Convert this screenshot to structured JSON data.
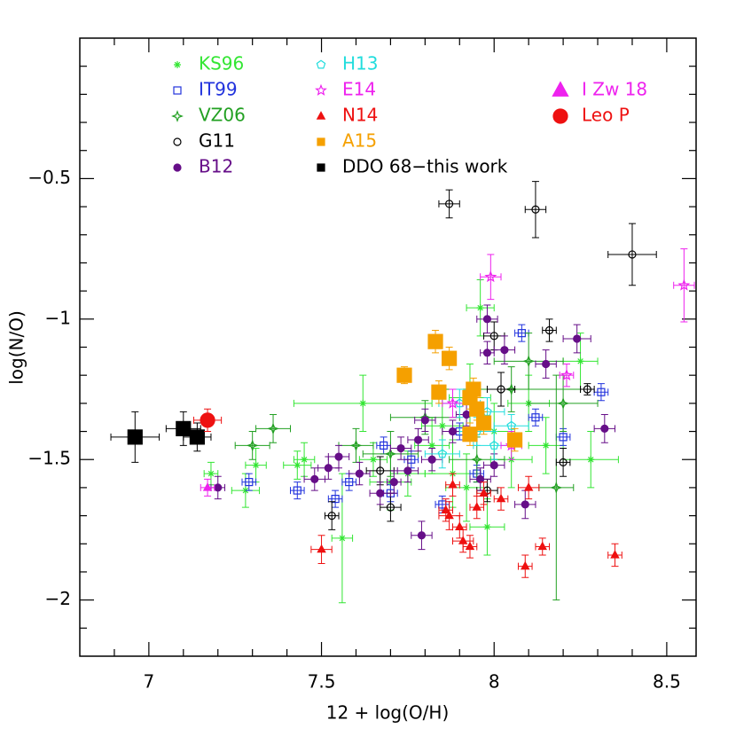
{
  "chart_data": {
    "type": "scatter",
    "xlabel": "12 + log(O/H)",
    "ylabel": "log(N/O)",
    "xlim": [
      6.8,
      8.585
    ],
    "ylim": [
      -2.2,
      0
    ],
    "xticks": [
      7,
      7.5,
      8,
      8.5
    ],
    "yticks": [
      {
        "value": -2,
        "label": "−2"
      },
      {
        "value": -1.5,
        "label": "−1.5"
      },
      {
        "value": -1,
        "label": "−1"
      },
      {
        "value": -0.5,
        "label": "−0.5"
      }
    ],
    "xminorticks": [
      6.9,
      7.1,
      7.2,
      7.3,
      7.4,
      7.6,
      7.7,
      7.8,
      7.9,
      8.1,
      8.2,
      8.3,
      8.4
    ],
    "yminorticks": [
      -2.1,
      -1.9,
      -1.8,
      -1.7,
      -1.6,
      -1.4,
      -1.3,
      -1.2,
      -1.1,
      -0.9,
      -0.8,
      -0.7,
      -0.6,
      -0.4,
      -0.3,
      -0.2,
      -0.1
    ],
    "series": [
      {
        "name": "KS96",
        "color": "#33e633",
        "marker": "asterisk",
        "x": [
          7.18,
          7.28,
          7.31,
          7.43,
          7.56,
          7.45,
          7.65,
          7.75,
          7.82,
          7.88,
          7.93,
          7.96,
          8.0,
          8.05,
          8.1,
          8.15,
          8.25,
          8.28,
          7.98,
          7.92,
          7.7,
          7.62,
          7.85
        ],
        "values": [
          -1.55,
          -1.61,
          -1.52,
          -1.52,
          -1.78,
          -1.5,
          -1.5,
          -1.55,
          -1.45,
          -1.55,
          -1.28,
          -0.96,
          -1.4,
          -1.5,
          -1.3,
          -1.45,
          -1.15,
          -1.5,
          -1.74,
          -1.6,
          -1.58,
          -1.3,
          -1.38
        ],
        "xerr": [
          0.02,
          0.04,
          0.03,
          0.04,
          0.03,
          0.03,
          0.04,
          0.05,
          0.05,
          0.08,
          0.06,
          0.04,
          0.05,
          0.06,
          0.06,
          0.05,
          0.05,
          0.08,
          0.05,
          0.06,
          0.06,
          0.2,
          0.06
        ],
        "yerr": [
          0.04,
          0.06,
          0.06,
          0.05,
          0.23,
          0.06,
          0.06,
          0.08,
          0.1,
          0.12,
          0.12,
          0.1,
          0.1,
          0.1,
          0.1,
          0.1,
          0.1,
          0.1,
          0.1,
          0.12,
          0.1,
          0.1,
          0.1
        ]
      },
      {
        "name": "IT99",
        "color": "#2233dd",
        "marker": "open-square",
        "x": [
          7.29,
          7.43,
          7.54,
          7.58,
          7.7,
          7.76,
          7.85,
          8.08,
          8.31,
          7.9,
          7.68,
          8.12,
          7.95,
          8.2
        ],
        "values": [
          -1.58,
          -1.61,
          -1.64,
          -1.58,
          -1.62,
          -1.5,
          -1.66,
          -1.05,
          -1.26,
          -1.4,
          -1.45,
          -1.35,
          -1.55,
          -1.42
        ],
        "xerr": [
          0.02,
          0.02,
          0.02,
          0.02,
          0.02,
          0.02,
          0.02,
          0.02,
          0.02,
          0.02,
          0.02,
          0.02,
          0.02,
          0.02
        ],
        "yerr": [
          0.03,
          0.03,
          0.03,
          0.03,
          0.03,
          0.03,
          0.03,
          0.03,
          0.03,
          0.03,
          0.03,
          0.03,
          0.03,
          0.03
        ]
      },
      {
        "name": "VZ06",
        "color": "#22a022",
        "marker": "open-star4",
        "x": [
          7.3,
          7.36,
          7.6,
          7.8,
          8.05,
          8.2,
          7.95,
          7.7,
          8.1,
          8.18
        ],
        "values": [
          -1.45,
          -1.39,
          -1.45,
          -1.35,
          -1.25,
          -1.3,
          -1.5,
          -1.48,
          -1.15,
          -1.6
        ],
        "xerr": [
          0.05,
          0.05,
          0.05,
          0.1,
          0.2,
          0.1,
          0.08,
          0.08,
          0.1,
          0.05
        ],
        "yerr": [
          0.05,
          0.05,
          0.06,
          0.06,
          0.08,
          0.1,
          0.08,
          0.08,
          0.1,
          0.4
        ]
      },
      {
        "name": "G11",
        "color": "#000000",
        "marker": "open-circle",
        "x": [
          7.87,
          8.12,
          8.4,
          8.16,
          8.2,
          7.7,
          7.53,
          8.0,
          8.02,
          7.67,
          8.27,
          7.98
        ],
        "values": [
          -0.59,
          -0.61,
          -0.77,
          -1.04,
          -1.51,
          -1.67,
          -1.7,
          -1.06,
          -1.25,
          -1.54,
          -1.25,
          -1.61
        ],
        "xerr": [
          0.03,
          0.03,
          0.07,
          0.02,
          0.02,
          0.03,
          0.02,
          0.03,
          0.04,
          0.04,
          0.02,
          0.03
        ],
        "yerr": [
          0.05,
          0.1,
          0.11,
          0.04,
          0.05,
          0.05,
          0.05,
          0.05,
          0.06,
          0.05,
          0.02,
          0.04
        ]
      },
      {
        "name": "B12",
        "color": "#660e88",
        "marker": "filled-circle",
        "x": [
          7.2,
          7.48,
          7.55,
          7.52,
          7.61,
          7.67,
          7.71,
          7.75,
          7.79,
          7.78,
          7.8,
          7.88,
          7.92,
          7.98,
          8.03,
          8.15,
          8.24,
          8.32,
          8.09,
          7.96,
          8.0,
          7.73,
          7.82,
          7.98
        ],
        "values": [
          -1.6,
          -1.57,
          -1.49,
          -1.53,
          -1.55,
          -1.62,
          -1.58,
          -1.54,
          -1.77,
          -1.43,
          -1.36,
          -1.4,
          -1.34,
          -1.0,
          -1.11,
          -1.16,
          -1.07,
          -1.39,
          -1.66,
          -1.57,
          -1.52,
          -1.46,
          -1.5,
          -1.12
        ],
        "xerr": [
          0.02,
          0.03,
          0.03,
          0.03,
          0.03,
          0.03,
          0.02,
          0.03,
          0.03,
          0.03,
          0.03,
          0.03,
          0.03,
          0.03,
          0.03,
          0.03,
          0.04,
          0.03,
          0.03,
          0.03,
          0.03,
          0.03,
          0.03,
          0.02
        ],
        "yerr": [
          0.04,
          0.04,
          0.04,
          0.04,
          0.04,
          0.04,
          0.04,
          0.04,
          0.05,
          0.04,
          0.04,
          0.04,
          0.04,
          0.05,
          0.05,
          0.05,
          0.05,
          0.05,
          0.05,
          0.04,
          0.04,
          0.04,
          0.04,
          0.04
        ]
      },
      {
        "name": "H13",
        "color": "#22dddd",
        "marker": "open-pentagon",
        "x": [
          7.9,
          7.95,
          8.0,
          8.05,
          7.85,
          7.98
        ],
        "values": [
          -1.3,
          -1.4,
          -1.45,
          -1.38,
          -1.48,
          -1.33
        ],
        "xerr": [
          0.06,
          0.05,
          0.06,
          0.05,
          0.05,
          0.05
        ],
        "yerr": [
          0.05,
          0.05,
          0.05,
          0.04,
          0.05,
          0.05
        ]
      },
      {
        "name": "E14",
        "color": "#ee22ee",
        "marker": "open-star5",
        "x": [
          8.55,
          7.99,
          8.21,
          7.88,
          8.05
        ],
        "values": [
          -0.88,
          -0.85,
          -1.2,
          -1.3,
          -1.45
        ],
        "xerr": [
          0.03,
          0.03,
          0.02,
          0.03,
          0.03
        ],
        "yerr": [
          0.13,
          0.08,
          0.04,
          0.05,
          0.05
        ]
      },
      {
        "name": "N14",
        "color": "#ee1111",
        "marker": "filled-triangle",
        "x": [
          7.5,
          7.87,
          7.9,
          7.91,
          7.93,
          7.95,
          8.09,
          8.14,
          8.35,
          8.1,
          7.88,
          7.97,
          8.02,
          7.86
        ],
        "values": [
          -1.82,
          -1.7,
          -1.74,
          -1.79,
          -1.81,
          -1.67,
          -1.88,
          -1.81,
          -1.84,
          -1.6,
          -1.59,
          -1.62,
          -1.64,
          -1.68
        ],
        "xerr": [
          0.03,
          0.03,
          0.02,
          0.03,
          0.02,
          0.02,
          0.02,
          0.02,
          0.02,
          0.03,
          0.02,
          0.02,
          0.02,
          0.02
        ],
        "yerr": [
          0.05,
          0.05,
          0.04,
          0.04,
          0.04,
          0.04,
          0.04,
          0.03,
          0.04,
          0.04,
          0.04,
          0.04,
          0.04,
          0.04
        ]
      },
      {
        "name": "A15",
        "color": "#f5a000",
        "marker": "filled-square",
        "x": [
          7.74,
          7.83,
          7.87,
          7.84,
          7.94,
          7.93,
          7.95,
          7.97,
          7.93,
          8.06
        ],
        "values": [
          -1.2,
          -1.08,
          -1.14,
          -1.26,
          -1.25,
          -1.28,
          -1.32,
          -1.37,
          -1.41,
          -1.43
        ],
        "xerr": [
          0.02,
          0.02,
          0.02,
          0.02,
          0.02,
          0.02,
          0.02,
          0.02,
          0.02,
          0.02
        ],
        "yerr": [
          0.03,
          0.04,
          0.04,
          0.04,
          0.04,
          0.04,
          0.04,
          0.04,
          0.04,
          0.04
        ]
      },
      {
        "name": "DDO 68−this work",
        "color": "#000000",
        "marker": "filled-square",
        "x": [
          6.96,
          7.1,
          7.14
        ],
        "values": [
          -1.42,
          -1.39,
          -1.42
        ],
        "xerr": [
          0.07,
          0.05,
          0.04
        ],
        "yerr": [
          0.09,
          0.06,
          0.05
        ]
      },
      {
        "name": "I Zw 18",
        "color": "#ee22ee",
        "marker": "filled-triangle",
        "x": [
          7.17
        ],
        "values": [
          -1.6
        ],
        "xerr": [
          0.02
        ],
        "yerr": [
          0.03
        ]
      },
      {
        "name": "Leo P",
        "color": "#ee1111",
        "marker": "filled-circle",
        "x": [
          7.17
        ],
        "values": [
          -1.36
        ],
        "xerr": [
          0.04
        ],
        "yerr": [
          0.04
        ]
      }
    ]
  }
}
